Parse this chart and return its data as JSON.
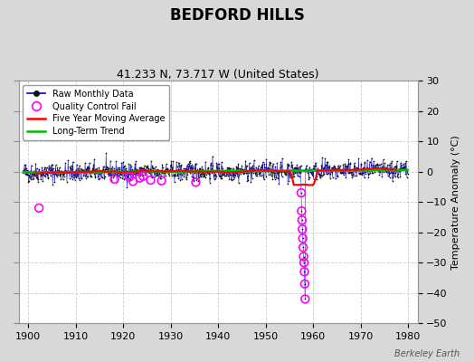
{
  "title": "BEDFORD HILLS",
  "subtitle": "41.233 N, 73.717 W (United States)",
  "ylabel": "Temperature Anomaly (°C)",
  "watermark": "Berkeley Earth",
  "xlim": [
    1898,
    1982
  ],
  "ylim": [
    -50,
    30
  ],
  "yticks": [
    -50,
    -40,
    -30,
    -20,
    -10,
    0,
    10,
    20,
    30
  ],
  "xticks": [
    1900,
    1910,
    1920,
    1930,
    1940,
    1950,
    1960,
    1970,
    1980
  ],
  "fig_bg_color": "#d8d8d8",
  "plot_bg_color": "#ffffff",
  "raw_color": "#0000cc",
  "raw_dot_color": "#111111",
  "qc_fail_color": "#ff00ff",
  "moving_avg_color": "#ff0000",
  "trend_color": "#00bb00",
  "seed": 42,
  "year_start": 1899,
  "year_end": 1980,
  "anomaly_std": 1.6,
  "spike_start_year": 1957.5,
  "spike_values": [
    -7,
    -13,
    -16,
    -19,
    -22,
    -25,
    -28,
    -30,
    -33,
    -37,
    -42
  ],
  "moving_avg_window": 60,
  "qc_early_times": [
    1902.3
  ],
  "qc_early_vals": [
    -12
  ],
  "qc_mid_times": [
    1918.2,
    1921.3,
    1922.1,
    1923.5,
    1924.2,
    1925.8,
    1928.1,
    1935.3
  ],
  "qc_mid_vals": [
    -2.5,
    -1.8,
    -3.2,
    -2.1,
    -1.5,
    -2.8,
    -3.0,
    -3.5
  ],
  "qc_spike_offsets": [
    0,
    0.08,
    0.16,
    0.25,
    0.33,
    0.42,
    0.5,
    0.58,
    0.67,
    0.75,
    0.83
  ]
}
